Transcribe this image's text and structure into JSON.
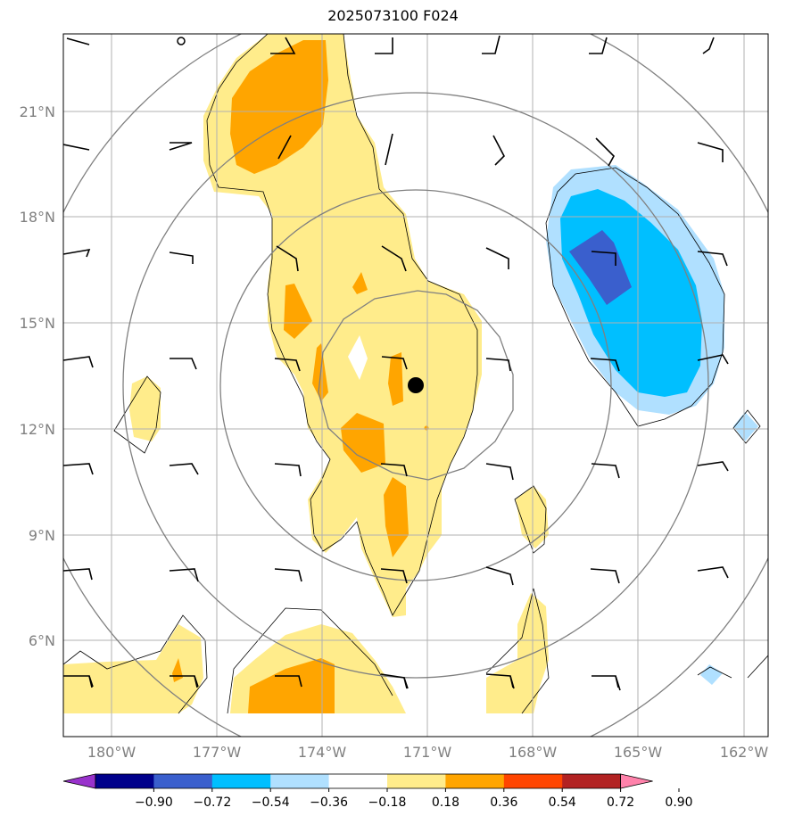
{
  "title": "2025073100 F024",
  "map": {
    "lon_labels": [
      "180°W",
      "177°W",
      "174°W",
      "171°W",
      "168°W",
      "165°W",
      "162°W"
    ],
    "lat_labels": [
      "21°N",
      "18°N",
      "15°N",
      "12°N",
      "9°N",
      "6°N"
    ],
    "center_marker": "storm-center-dot",
    "gridlines": true
  },
  "colorbar": {
    "levels": [
      "−0.90",
      "−0.72",
      "−0.54",
      "−0.36",
      "−0.18",
      "0.18",
      "0.36",
      "0.54",
      "0.72",
      "0.90"
    ],
    "colors": [
      "#9932cc",
      "#00008b",
      "#3a5fcd",
      "#00bfff",
      "#b0e0ff",
      "#ffffff",
      "#ffec8b",
      "#ffa500",
      "#ff4500",
      "#b22222",
      "#ff82ab"
    ]
  },
  "fill_colors": {
    "pale_yellow": "#ffec8b",
    "orange": "#ffa500",
    "light_blue": "#b0e0ff",
    "deep_sky_blue": "#00bfff",
    "royal_blue": "#3a5fcd"
  }
}
